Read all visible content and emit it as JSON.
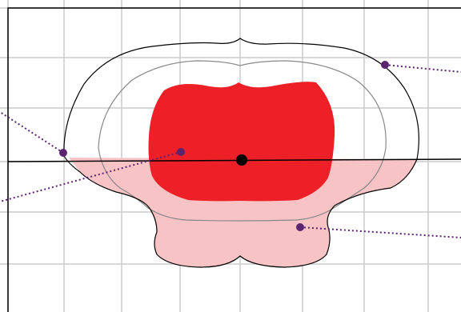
{
  "diagram": {
    "kind": "cross-section schematic with graph-paper grid",
    "colors": {
      "background": "#ffffff",
      "grid": "#cccccc",
      "frame": "#000000",
      "outline_outer": "#000000",
      "outline_inner": "#888888",
      "core_fill": "#ed2028",
      "lower_fill": "#f8c3c4",
      "baseline": "#000000",
      "center_point": "#000000",
      "leader_lines": "#5a2470",
      "leader_points": "#5a2470"
    },
    "regions": [
      {
        "id": "outer-outline",
        "name": "outer-outline"
      },
      {
        "id": "inner-outline",
        "name": "inner-outline"
      },
      {
        "id": "core-region",
        "name": "core-region"
      },
      {
        "id": "lower-region",
        "name": "lower-region"
      }
    ],
    "markers": [
      {
        "id": "center-point",
        "name": "center-point"
      },
      {
        "id": "callout-point-upper-right",
        "name": "callout-point-upper-right"
      },
      {
        "id": "callout-point-left",
        "name": "callout-point-left"
      },
      {
        "id": "callout-point-center-left",
        "name": "callout-point-center-left"
      },
      {
        "id": "callout-point-lower-right",
        "name": "callout-point-lower-right"
      }
    ],
    "labels": []
  }
}
